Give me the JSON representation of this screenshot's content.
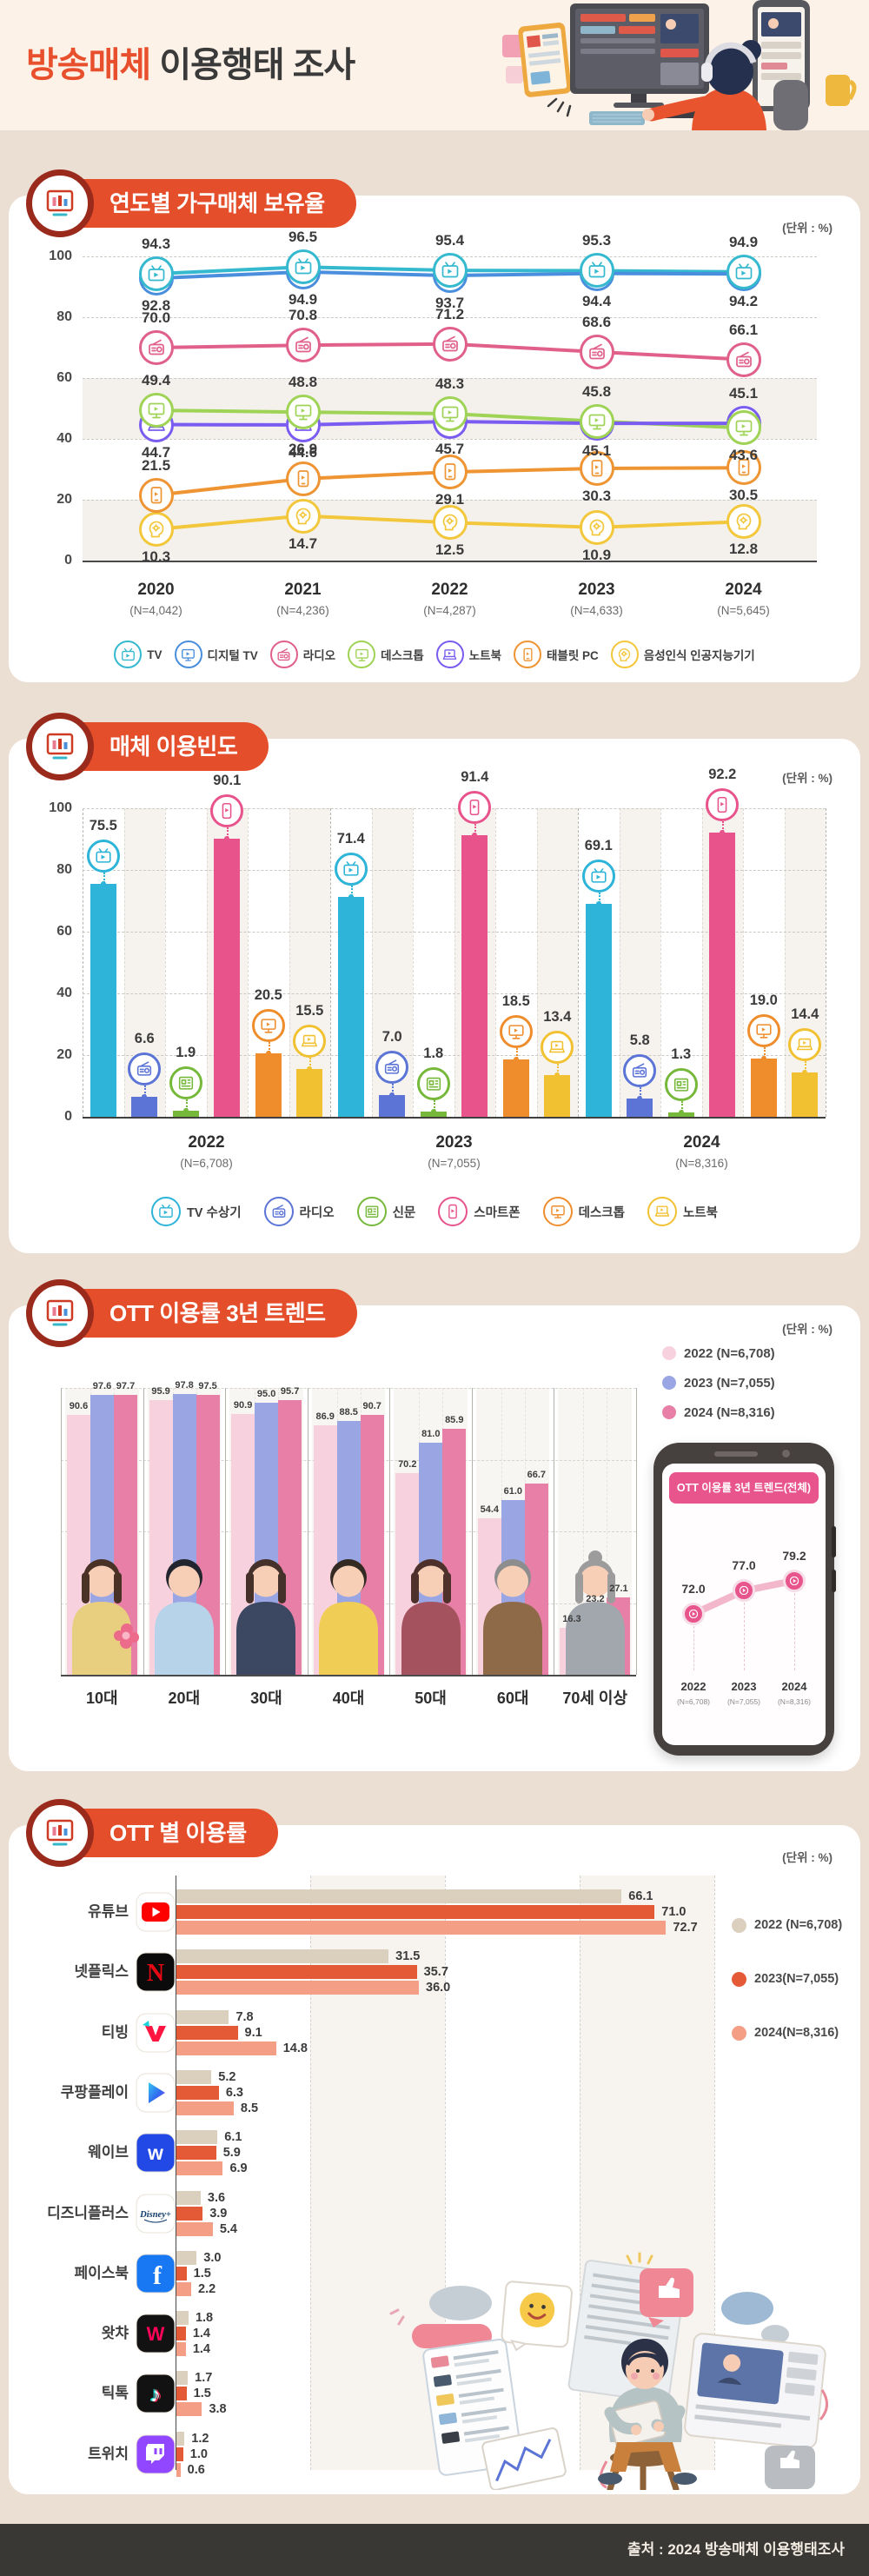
{
  "page": {
    "title_highlight": "방송매체",
    "title_rest": " 이용행태 조사",
    "footer": "출처 : 2024 방송매체 이용행태조사",
    "accent_color": "#e8502d",
    "background_color": "#eadfd2"
  },
  "chart_data": [
    {
      "id": "ownership",
      "type": "line",
      "title": "연도별 가구매체 보유율",
      "unit": "(단위 : %)",
      "x_labels": [
        "2020",
        "2021",
        "2022",
        "2023",
        "2024"
      ],
      "x_sublabels": [
        "(N=4,042)",
        "(N=4,236)",
        "(N=4,287)",
        "(N=4,633)",
        "(N=5,645)"
      ],
      "ylim": [
        0,
        100
      ],
      "yticks": [
        0,
        20,
        40,
        60,
        80,
        100
      ],
      "grid": "dashed",
      "series": [
        {
          "name": "TV",
          "icon": "tv-icon",
          "color": "#35b9cf",
          "values": [
            94.3,
            96.5,
            95.4,
            95.3,
            94.9
          ],
          "label_side": [
            "a",
            "a",
            "a",
            "a",
            "a"
          ]
        },
        {
          "name": "디지털 TV",
          "icon": "digital-tv-icon",
          "color": "#4a8ede",
          "values": [
            92.8,
            94.9,
            93.7,
            94.4,
            94.2
          ],
          "label_side": [
            "b",
            "b",
            "b",
            "b",
            "b"
          ]
        },
        {
          "name": "라디오",
          "icon": "radio-icon",
          "color": "#e0608a",
          "values": [
            70.0,
            70.8,
            71.2,
            68.6,
            66.1
          ],
          "label_side": [
            "a",
            "a",
            "a",
            "a",
            "a"
          ]
        },
        {
          "name": "데스크톱",
          "icon": "desktop-icon",
          "color": "#9ed356",
          "values": [
            49.4,
            48.8,
            48.3,
            45.8,
            43.6
          ],
          "label_side": [
            "a",
            "a",
            "a",
            "a",
            "b"
          ]
        },
        {
          "name": "노트북",
          "icon": "laptop-icon",
          "color": "#7a5cf0",
          "values": [
            44.7,
            44.6,
            45.7,
            45.1,
            45.1
          ],
          "label_side": [
            "b",
            "b",
            "b",
            "b",
            "a"
          ]
        },
        {
          "name": "태블릿 PC",
          "icon": "tablet-icon",
          "color": "#ef9433",
          "values": [
            21.5,
            26.9,
            29.1,
            30.3,
            30.5
          ],
          "label_side": [
            "a",
            "a",
            "b",
            "b",
            "b"
          ]
        },
        {
          "name": "음성인식 인공지능기기",
          "icon": "ai-speaker-icon",
          "color": "#f3c73c",
          "values": [
            10.3,
            14.7,
            12.5,
            10.9,
            12.8
          ],
          "label_side": [
            "b",
            "b",
            "b",
            "b",
            "b"
          ]
        }
      ]
    },
    {
      "id": "frequency",
      "type": "bar",
      "title": "매체 이용빈도",
      "unit": "(단위 : %)",
      "groups": [
        "2022",
        "2023",
        "2024"
      ],
      "group_sublabels": [
        "(N=6,708)",
        "(N=7,055)",
        "(N=8,316)"
      ],
      "ylim": [
        0,
        100
      ],
      "yticks": [
        0,
        20,
        40,
        60,
        80,
        100
      ],
      "series": [
        {
          "name": "TV 수상기",
          "icon": "tv-icon",
          "color": "#2db4d8",
          "values": [
            75.5,
            71.4,
            69.1
          ]
        },
        {
          "name": "라디오",
          "icon": "radio-icon",
          "color": "#5b74d6",
          "values": [
            6.6,
            7.0,
            5.8
          ]
        },
        {
          "name": "신문",
          "icon": "newspaper-icon",
          "color": "#76b83a",
          "values": [
            1.9,
            1.8,
            1.3
          ]
        },
        {
          "name": "스마트폰",
          "icon": "smartphone-icon",
          "color": "#e8538c",
          "values": [
            90.1,
            91.4,
            92.2
          ]
        },
        {
          "name": "데스크톱",
          "icon": "desktop-icon",
          "color": "#ef8d2d",
          "values": [
            20.5,
            18.5,
            19.0
          ]
        },
        {
          "name": "노트북",
          "icon": "laptop-icon",
          "color": "#f2c132",
          "values": [
            15.5,
            13.4,
            14.4
          ]
        }
      ]
    },
    {
      "id": "ott-age-trend",
      "type": "bar",
      "title": "OTT 이용률 3년 트렌드",
      "unit": "(단위 : %)",
      "categories": [
        "10대",
        "20대",
        "30대",
        "40대",
        "50대",
        "60대",
        "70세 이상"
      ],
      "ylim": [
        0,
        100
      ],
      "legend_position": "right",
      "series": [
        {
          "name": "2022 (N=6,708)",
          "color": "#f7d2de",
          "values": [
            90.6,
            95.9,
            90.9,
            86.9,
            70.2,
            54.4,
            16.3
          ]
        },
        {
          "name": "2023 (N=7,055)",
          "color": "#9aa6e3",
          "values": [
            97.6,
            97.8,
            95.0,
            88.5,
            81.0,
            61.0,
            23.2
          ]
        },
        {
          "name": "2024 (N=8,316)",
          "color": "#e87fa6",
          "values": [
            97.7,
            97.5,
            95.7,
            90.7,
            85.9,
            66.7,
            27.1
          ]
        }
      ]
    },
    {
      "id": "ott-total-trend",
      "type": "line",
      "title": "OTT 이용률 3년 트렌드(전체)",
      "x_labels": [
        "2022",
        "2023",
        "2024"
      ],
      "x_sublabels": [
        "(N=6,708)",
        "(N=7,055)",
        "(N=8,316)"
      ],
      "values": [
        72.0,
        77.0,
        79.2
      ],
      "color": "#e8548c"
    },
    {
      "id": "ott-services",
      "type": "bar",
      "orientation": "horizontal",
      "title": "OTT 별 이용률",
      "unit": "(단위 : %)",
      "categories": [
        "유튜브",
        "넷플릭스",
        "티빙",
        "쿠팡플레이",
        "웨이브",
        "디즈니플러스",
        "페이스북",
        "왓챠",
        "틱톡",
        "트위치"
      ],
      "icons": [
        "youtube-icon",
        "netflix-icon",
        "tving-icon",
        "coupang-play-icon",
        "wavve-icon",
        "disney-plus-icon",
        "facebook-icon",
        "watcha-icon",
        "tiktok-icon",
        "twitch-icon"
      ],
      "xlim": [
        0,
        100
      ],
      "series": [
        {
          "name": "2022 (N=6,708)",
          "color": "#dbcfbe",
          "values": [
            66.1,
            31.5,
            7.8,
            5.2,
            6.1,
            3.6,
            3.0,
            1.8,
            1.7,
            1.2
          ]
        },
        {
          "name": "2023(N=7,055)",
          "color": "#e45a36",
          "values": [
            71.0,
            35.7,
            9.1,
            6.3,
            5.9,
            3.9,
            1.5,
            1.4,
            1.5,
            1.0
          ]
        },
        {
          "name": "2024(N=8,316)",
          "color": "#f39e85",
          "values": [
            72.7,
            36.0,
            14.8,
            8.5,
            6.9,
            5.4,
            2.2,
            1.4,
            3.8,
            0.6
          ]
        }
      ]
    }
  ]
}
